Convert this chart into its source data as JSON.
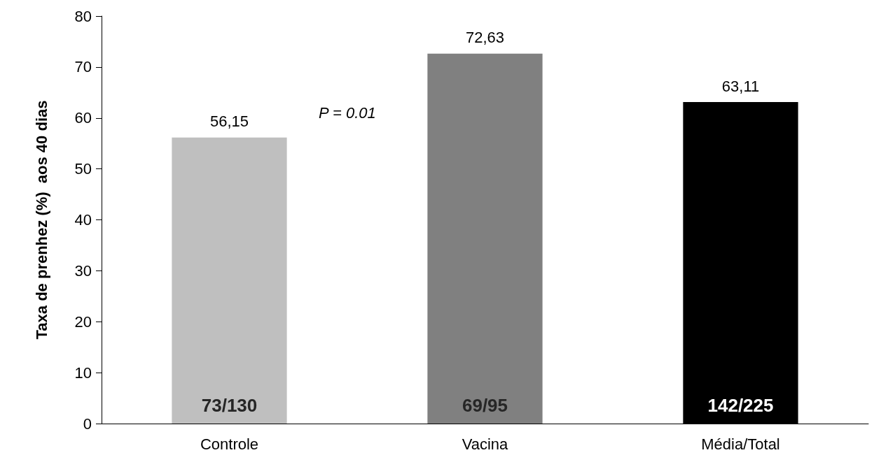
{
  "chart_data": {
    "type": "bar",
    "ylabel": "Taxa de prenhez (%)  aos 40 dias",
    "categories": [
      "Controle",
      "Vacina",
      "Média/Total"
    ],
    "values": [
      56.15,
      72.63,
      63.11
    ],
    "colors": [
      "#bfbfbf",
      "#808080",
      "#000000"
    ],
    "value_labels": [
      "56,15",
      "72,63",
      "63,11"
    ],
    "ylim": [
      0,
      80
    ],
    "yticks": [
      0,
      10,
      20,
      30,
      40,
      50,
      60,
      70,
      80
    ],
    "grid": false,
    "annotations": [
      "P = 0.01",
      "73/130",
      "69/95",
      "142/225"
    ]
  }
}
